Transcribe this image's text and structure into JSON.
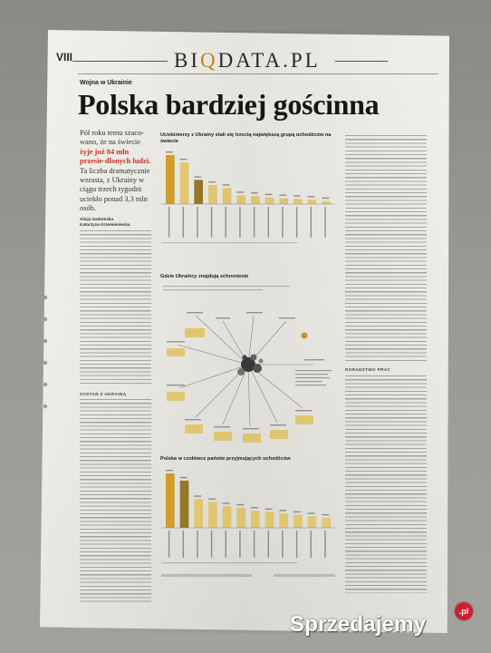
{
  "newspaper": {
    "page_number": "VIII",
    "masthead_before": "BI",
    "masthead_accent": "Q",
    "masthead_after": "DATA.PL",
    "section_label": "Wojna w Ukrainie",
    "headline": "Polska bardziej gościnna",
    "lead_parts": [
      "Pół roku temu szaco-wano, że na świecie ",
      "żyje już 84 mln przesie-dlonych ludzi.",
      " Ta liczba dramatycznie wzrasta, z Ukrainy w ciągu trzech tygodni uciekło ponad 3,3 mln osób."
    ],
    "authors": [
      "Alicja Gadomska",
      "Katarzyna Krzemieniecka"
    ],
    "section_head": "ZOSTAŃ Z UKRAINĄ",
    "sidebar_head": "DORADZTWO PRAC",
    "colors": {
      "accent": "#c88a1a",
      "headline_red": "#c7362b",
      "bar_gold": "#e9ce74",
      "bar_dark": "#9a7b2a",
      "bar_highlight": "#d8a22a"
    }
  },
  "charts": {
    "top": {
      "title": "Uciekinierzy z Ukrainy stali się trzecią największą grupą uchodźców na świecie",
      "values": [
        6.7,
        5.7,
        3.3,
        2.6,
        2.2,
        1.2,
        1.1,
        0.9,
        0.8,
        0.7,
        0.6,
        0.4
      ],
      "highlight_index": 2
    },
    "middle": {
      "title": "Gdzie Ukraińcy znajdują schronienie"
    },
    "bottom": {
      "title": "Polska w czołówce państw przyjmujących uchodźców",
      "values": [
        3.8,
        3.3,
        2.0,
        1.8,
        1.5,
        1.4,
        1.2,
        1.1,
        1.0,
        0.9,
        0.8,
        0.7
      ],
      "highlight_index": 1
    }
  },
  "watermark": {
    "text": "Sprzedajemy",
    "badge": ".pl"
  }
}
